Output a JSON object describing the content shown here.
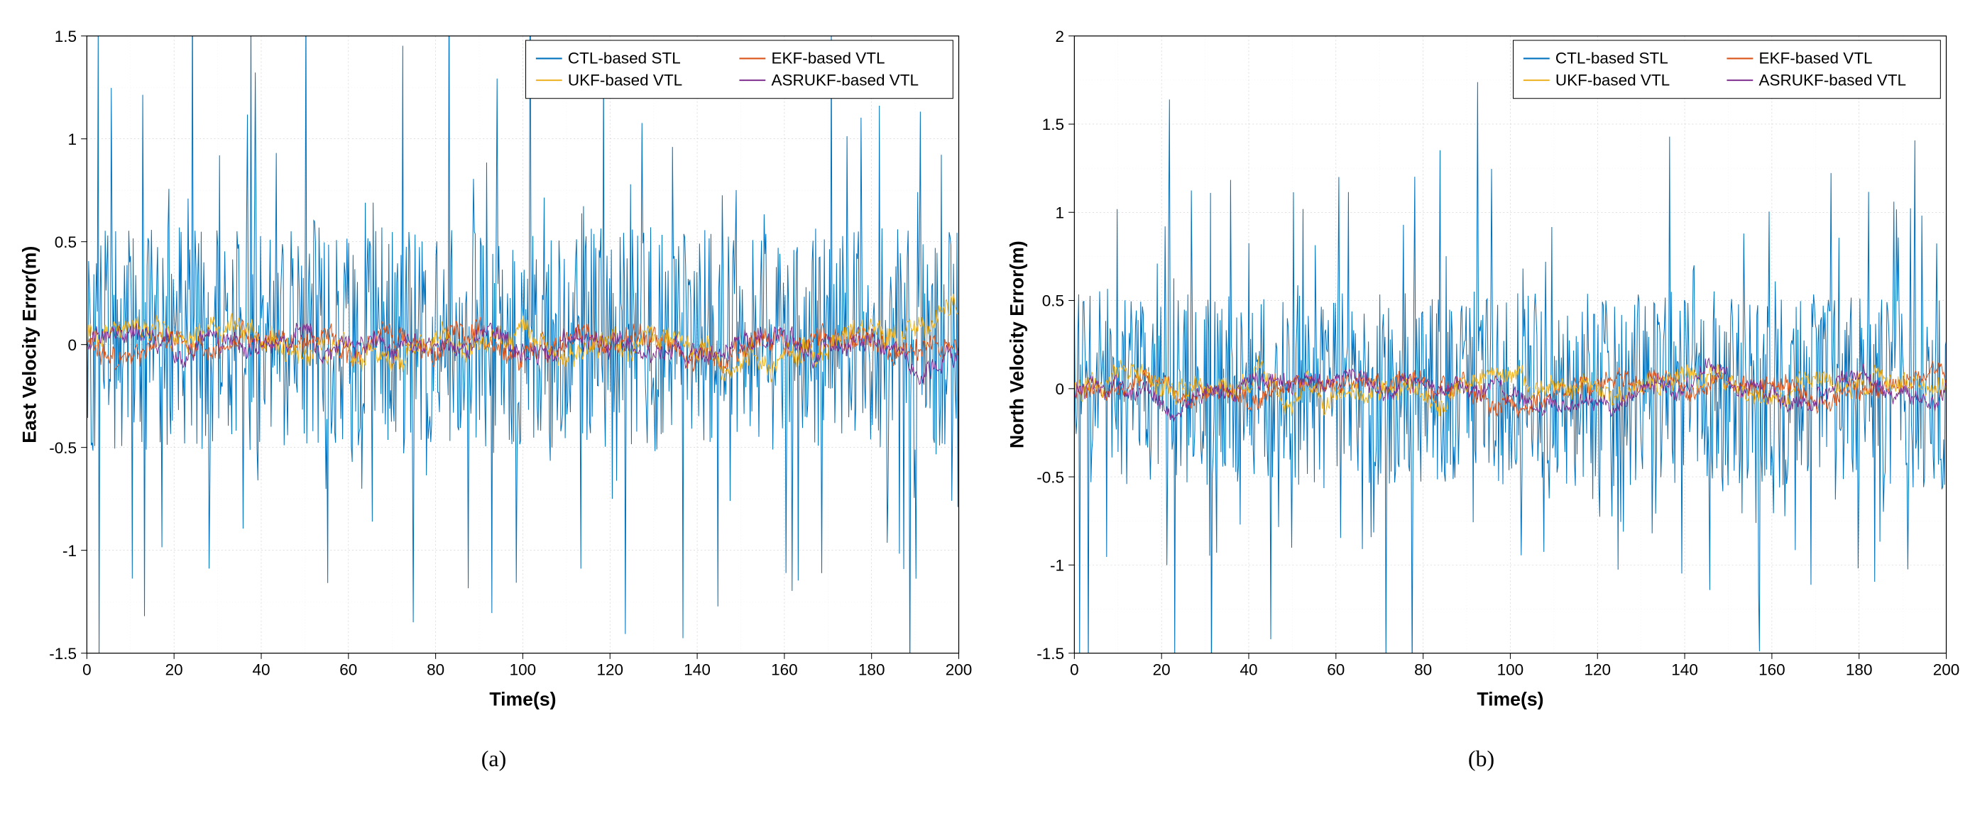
{
  "figure": {
    "background_color": "#ffffff",
    "subplots": [
      {
        "id": "a",
        "sub_label": "(a)",
        "xlabel": "Time(s)",
        "ylabel": "East Velocity Error(m)",
        "xlim": [
          0,
          200
        ],
        "ylim": [
          -1.5,
          1.5
        ],
        "xtick_step": 20,
        "ytick_step": 0.5,
        "xticks": [
          0,
          20,
          40,
          60,
          80,
          100,
          120,
          140,
          160,
          180,
          200
        ],
        "yticks": [
          -1.5,
          -1,
          -0.5,
          0,
          0.5,
          1,
          1.5
        ],
        "grid_color": "#cccccc",
        "axis_box_color": "#000000",
        "axis_label_fontsize": 26,
        "tick_fontsize": 22,
        "axis_label_fontweight": "bold",
        "minor_grid": true,
        "minor_grid_color": "#e6e6e6",
        "legend": {
          "position": "top-right-inside",
          "columns": 2,
          "fontsize": 22,
          "box_color": "#000000",
          "bg_color": "#ffffff",
          "items": [
            {
              "label": "CTL-based STL",
              "color": "#0072bd"
            },
            {
              "label": "UKF-based VTL",
              "color": "#edb120"
            },
            {
              "label": "EKF-based VTL",
              "color": "#d95319"
            },
            {
              "label": "ASRUKF-based VTL",
              "color": "#7e2f8e"
            }
          ]
        },
        "series": [
          {
            "name": "CTL-based STL",
            "color": "#0072bd",
            "line_width": 1.0,
            "amplitude": 0.55,
            "offset": 0.0,
            "noise": "high",
            "npts": 1000
          },
          {
            "name": "EKF-based VTL",
            "color": "#d95319",
            "line_width": 1.0,
            "amplitude": 0.12,
            "offset": 0.0,
            "noise": "low",
            "npts": 1000
          },
          {
            "name": "UKF-based VTL",
            "color": "#edb120",
            "line_width": 1.0,
            "amplitude": 0.13,
            "offset": 0.0,
            "noise": "low",
            "npts": 1000
          },
          {
            "name": "ASRUKF-based VTL",
            "color": "#7e2f8e",
            "line_width": 1.0,
            "amplitude": 0.1,
            "offset": 0.0,
            "noise": "low",
            "npts": 1000
          }
        ]
      },
      {
        "id": "b",
        "sub_label": "(b)",
        "xlabel": "Time(s)",
        "ylabel": "North Velocity Error(m)",
        "xlim": [
          0,
          200
        ],
        "ylim": [
          -1.5,
          2.0
        ],
        "xtick_step": 20,
        "ytick_step": 0.5,
        "xticks": [
          0,
          20,
          40,
          60,
          80,
          100,
          120,
          140,
          160,
          180,
          200
        ],
        "yticks": [
          -1.5,
          -1,
          -0.5,
          0,
          0.5,
          1,
          1.5,
          2
        ],
        "grid_color": "#cccccc",
        "axis_box_color": "#000000",
        "axis_label_fontsize": 26,
        "tick_fontsize": 22,
        "axis_label_fontweight": "bold",
        "minor_grid": true,
        "minor_grid_color": "#e6e6e6",
        "legend": {
          "position": "top-right-inside",
          "columns": 2,
          "fontsize": 22,
          "box_color": "#000000",
          "bg_color": "#ffffff",
          "items": [
            {
              "label": "CTL-based STL",
              "color": "#0072bd"
            },
            {
              "label": "UKF-based VTL",
              "color": "#edb120"
            },
            {
              "label": "EKF-based VTL",
              "color": "#d95319"
            },
            {
              "label": "ASRUKF-based VTL",
              "color": "#7e2f8e"
            }
          ]
        },
        "series": [
          {
            "name": "CTL-based STL",
            "color": "#0072bd",
            "line_width": 1.0,
            "amplitude": 0.55,
            "offset": 0.0,
            "noise": "high",
            "npts": 1000
          },
          {
            "name": "EKF-based VTL",
            "color": "#d95319",
            "line_width": 1.0,
            "amplitude": 0.12,
            "offset": 0.0,
            "noise": "low",
            "npts": 1000
          },
          {
            "name": "UKF-based VTL",
            "color": "#edb120",
            "line_width": 1.0,
            "amplitude": 0.13,
            "offset": 0.0,
            "noise": "low",
            "npts": 1000
          },
          {
            "name": "ASRUKF-based VTL",
            "color": "#7e2f8e",
            "line_width": 1.0,
            "amplitude": 0.1,
            "offset": 0.0,
            "noise": "low",
            "npts": 1000
          }
        ]
      }
    ]
  }
}
